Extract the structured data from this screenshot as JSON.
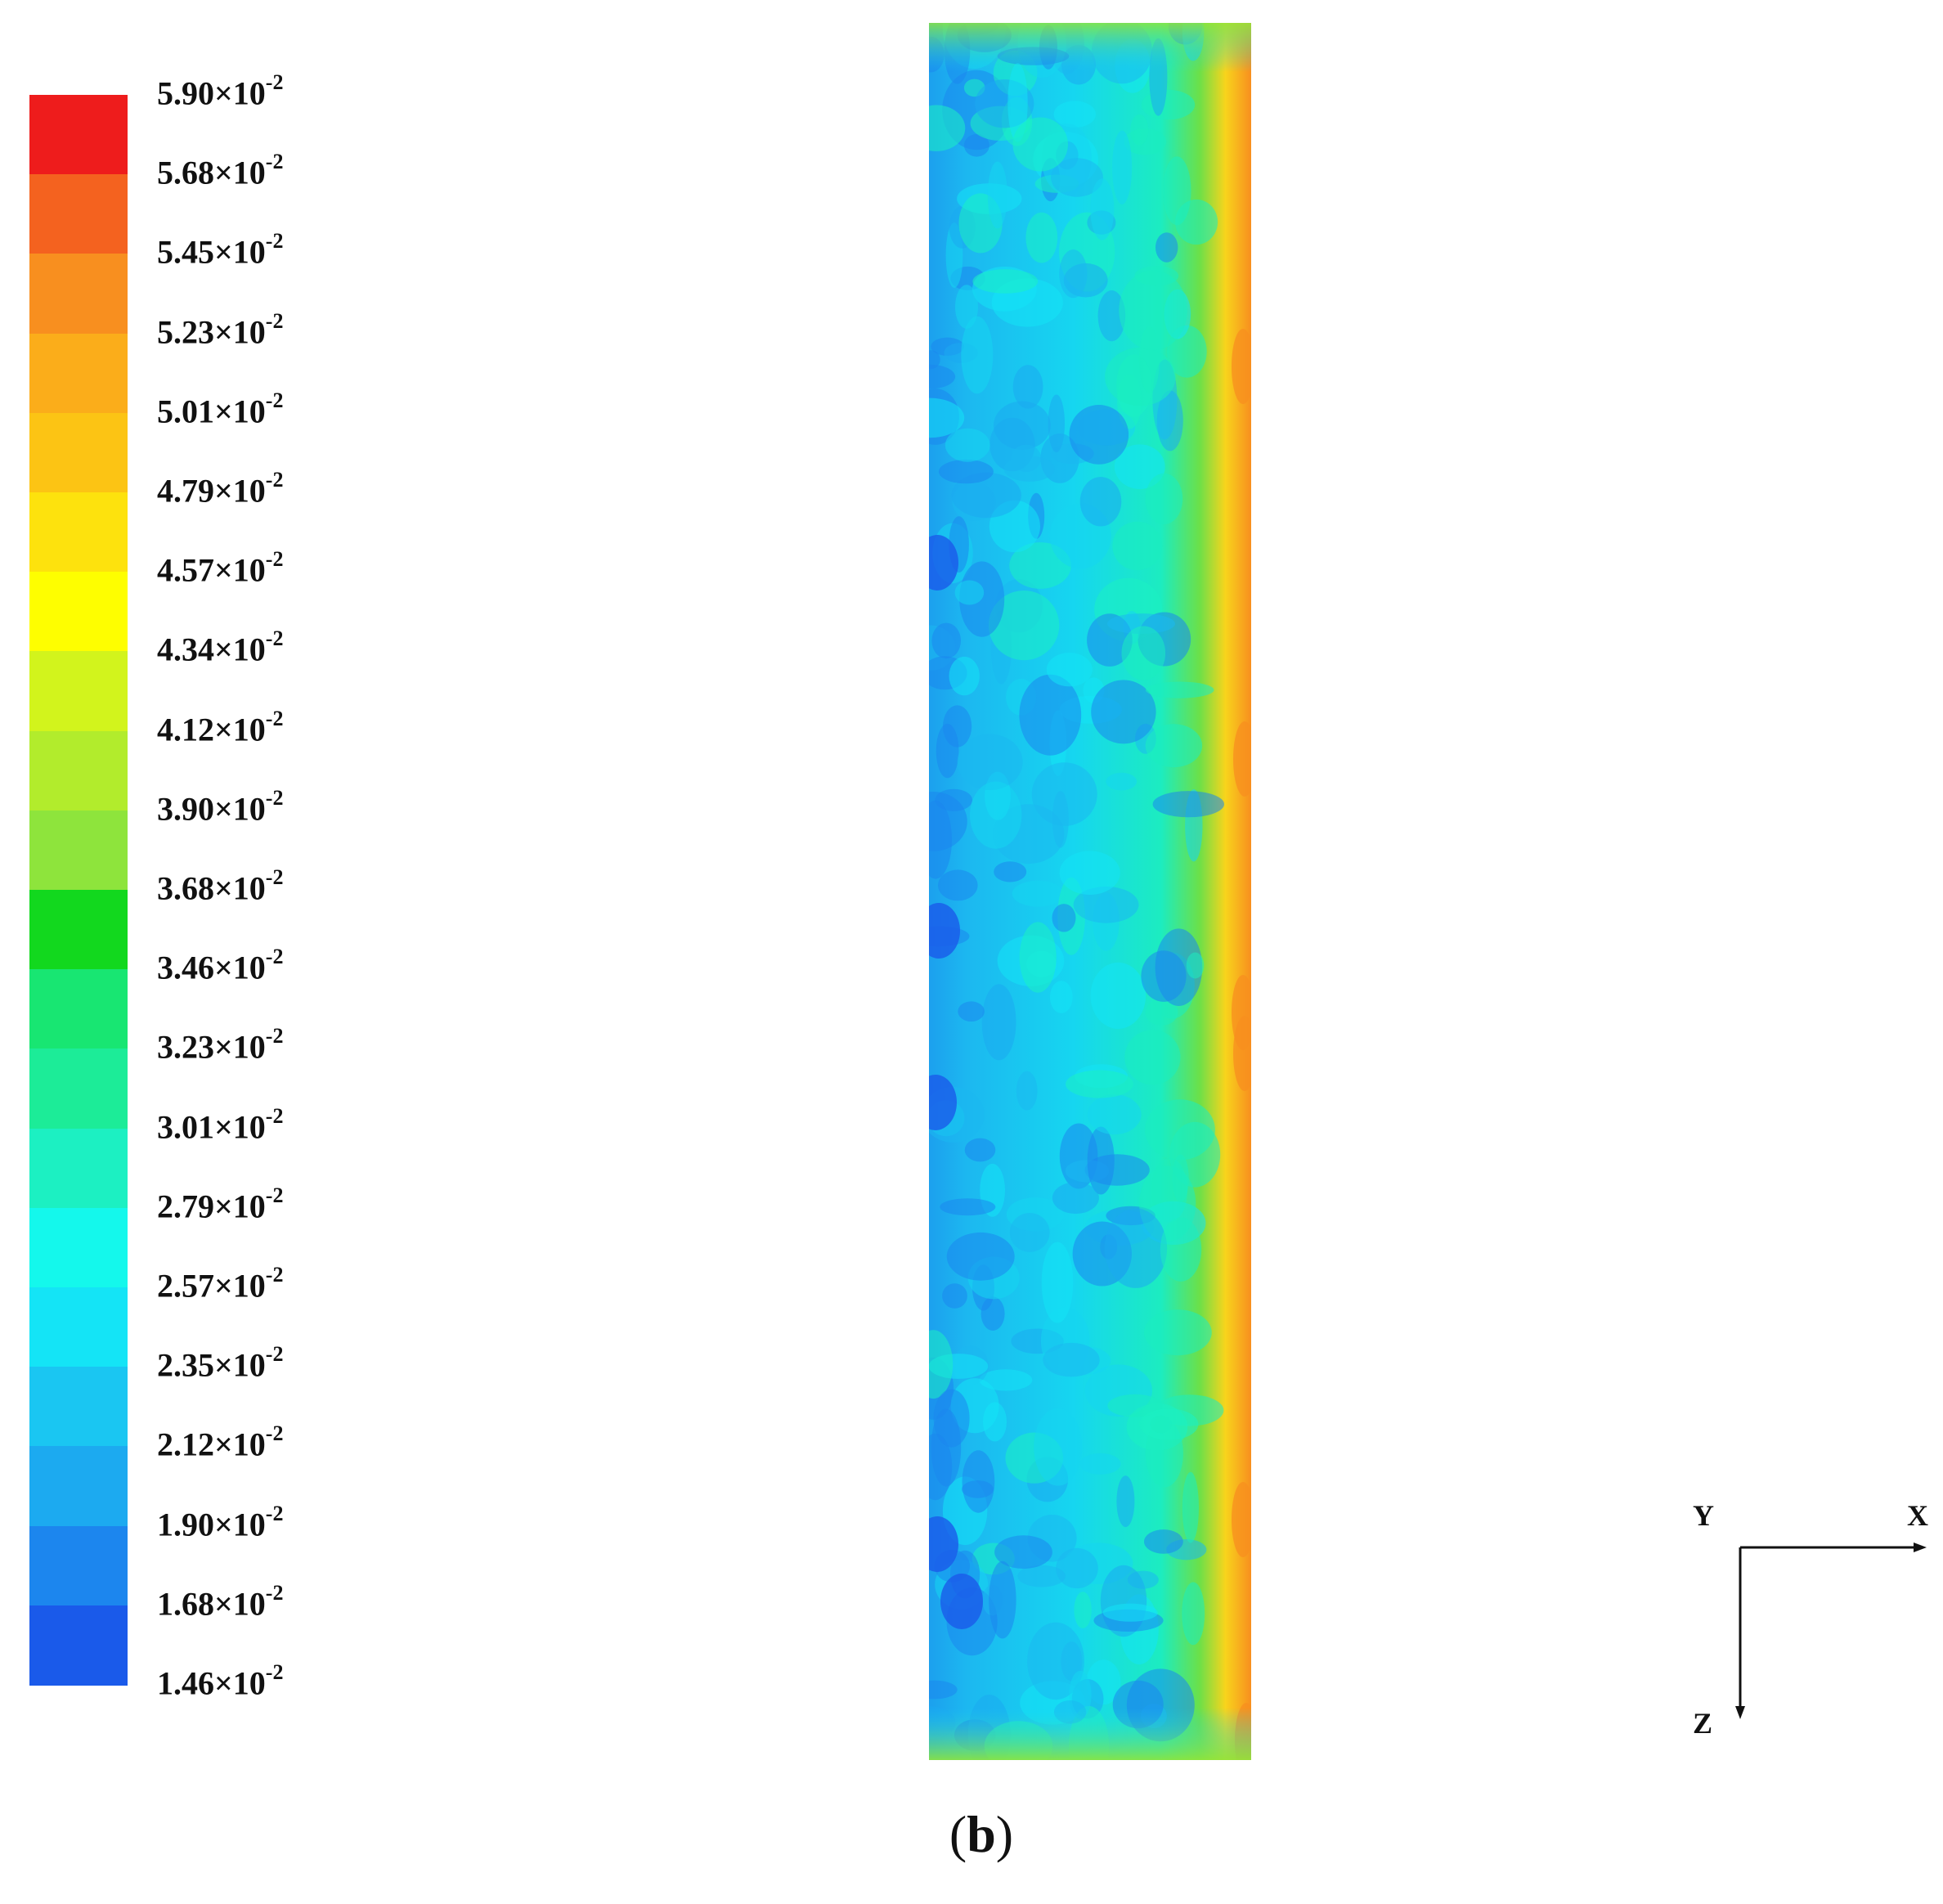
{
  "legend": {
    "ticks": [
      {
        "mantissa": "5.90",
        "exponent": "-2"
      },
      {
        "mantissa": "5.68",
        "exponent": "-2"
      },
      {
        "mantissa": "5.45",
        "exponent": "-2"
      },
      {
        "mantissa": "5.23",
        "exponent": "-2"
      },
      {
        "mantissa": "5.01",
        "exponent": "-2"
      },
      {
        "mantissa": "4.79",
        "exponent": "-2"
      },
      {
        "mantissa": "4.57",
        "exponent": "-2"
      },
      {
        "mantissa": "4.34",
        "exponent": "-2"
      },
      {
        "mantissa": "4.12",
        "exponent": "-2"
      },
      {
        "mantissa": "3.90",
        "exponent": "-2"
      },
      {
        "mantissa": "3.68",
        "exponent": "-2"
      },
      {
        "mantissa": "3.46",
        "exponent": "-2"
      },
      {
        "mantissa": "3.23",
        "exponent": "-2"
      },
      {
        "mantissa": "3.01",
        "exponent": "-2"
      },
      {
        "mantissa": "2.79",
        "exponent": "-2"
      },
      {
        "mantissa": "2.57",
        "exponent": "-2"
      },
      {
        "mantissa": "2.35",
        "exponent": "-2"
      },
      {
        "mantissa": "2.12",
        "exponent": "-2"
      },
      {
        "mantissa": "1.90",
        "exponent": "-2"
      },
      {
        "mantissa": "1.68",
        "exponent": "-2"
      },
      {
        "mantissa": "1.46",
        "exponent": "-2"
      }
    ],
    "band_colors": [
      "#ee1c1c",
      "#f4621f",
      "#f88f1f",
      "#fbad1a",
      "#fcc414",
      "#fde20d",
      "#fefe00",
      "#d2f41c",
      "#b2ec2c",
      "#8ee43c",
      "#12d81e",
      "#18e672",
      "#1cec98",
      "#1cf0c2",
      "#14f8ec",
      "#14e4f6",
      "#1ac6f2",
      "#1caaf0",
      "#1c86ee",
      "#1a5aea"
    ],
    "low_color": "#1414e8"
  },
  "field": {
    "base_color": "#16d6f0",
    "left_color": "#1ca0ee",
    "edge_color": "#f8d41c",
    "hot_color": "#f4621f"
  },
  "axes": {
    "x_label": "X",
    "y_label": "Y",
    "z_label": "Z"
  },
  "panel_label": "b"
}
